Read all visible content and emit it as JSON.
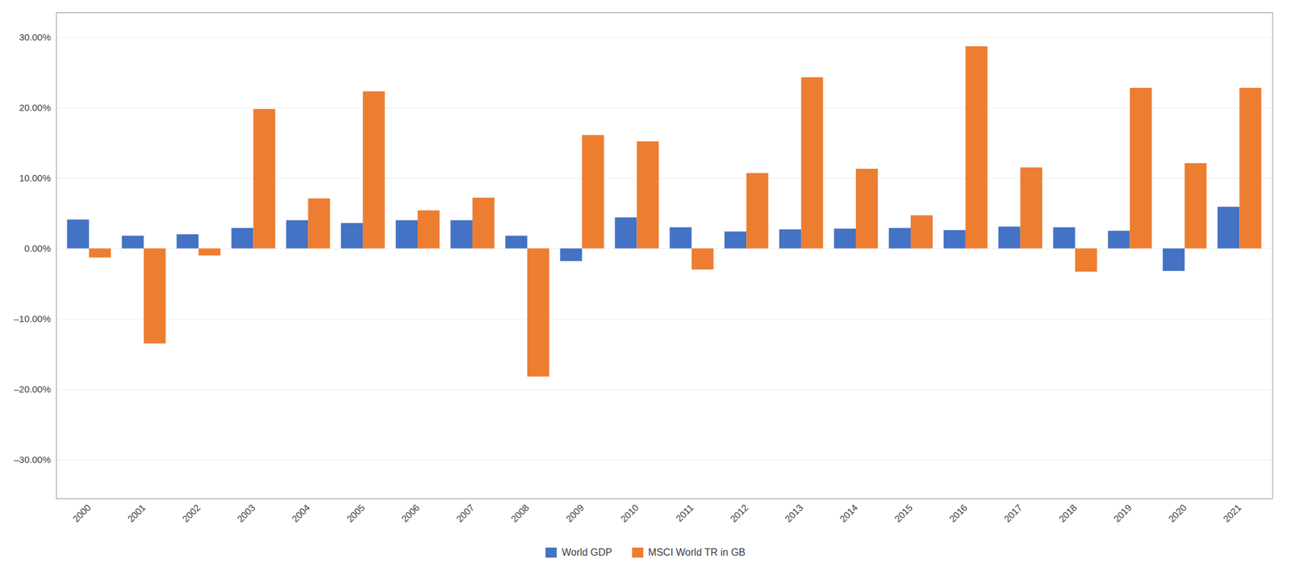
{
  "chart_data": {
    "type": "bar",
    "categories": [
      "2000",
      "2001",
      "2002",
      "2003",
      "2004",
      "2005",
      "2006",
      "2007",
      "2008",
      "2009",
      "2010",
      "2011",
      "2012",
      "2013",
      "2014",
      "2015",
      "2016",
      "2017",
      "2018",
      "2019",
      "2020",
      "2021"
    ],
    "series": [
      {
        "name": "World GDP",
        "color": "#4472C4",
        "values": [
          0.041,
          0.018,
          0.02,
          0.029,
          0.04,
          0.036,
          0.04,
          0.04,
          0.018,
          -0.018,
          0.044,
          0.03,
          0.024,
          0.027,
          0.028,
          0.029,
          0.026,
          0.031,
          0.03,
          0.025,
          -0.032,
          0.059
        ]
      },
      {
        "name": "MSCI World TR in GB",
        "color": "#ED7D31",
        "values": [
          -0.013,
          -0.135,
          -0.01,
          0.198,
          0.071,
          0.223,
          0.054,
          0.072,
          -0.182,
          0.161,
          0.152,
          -0.03,
          0.107,
          0.243,
          0.113,
          0.047,
          0.287,
          0.115,
          -0.033,
          0.228,
          0.121,
          0.228
        ]
      }
    ],
    "ylim": [
      -0.355,
      0.335
    ],
    "yticks": [
      {
        "value": -0.3,
        "label": "–30.00%"
      },
      {
        "value": -0.2,
        "label": "–20.00%"
      },
      {
        "value": -0.1,
        "label": "–10.00%"
      },
      {
        "value": 0.0,
        "label": "0.00%"
      },
      {
        "value": 0.1,
        "label": "10.00%"
      },
      {
        "value": 0.2,
        "label": "20.00%"
      },
      {
        "value": 0.3,
        "label": "30.00%"
      }
    ],
    "grid": true,
    "legend": "bottom"
  }
}
